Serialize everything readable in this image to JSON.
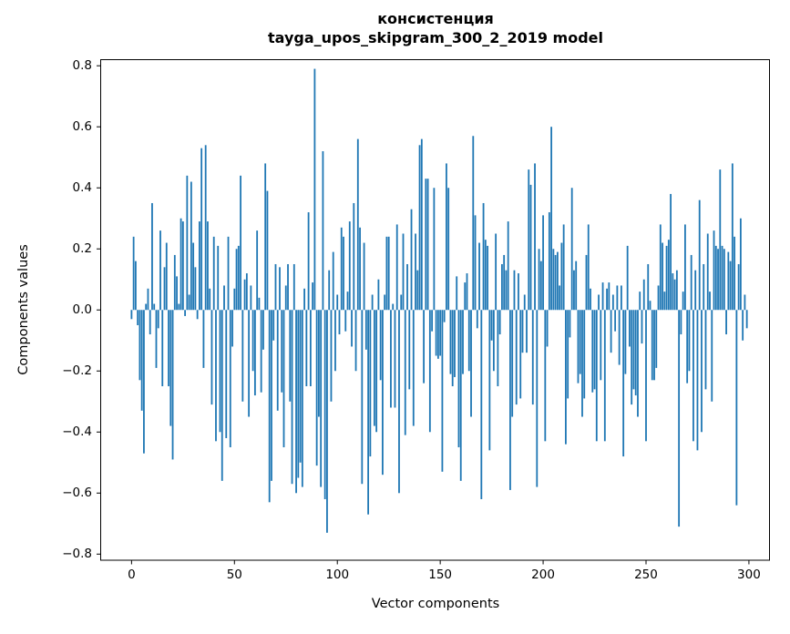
{
  "figure": {
    "title_line1": "консистенция",
    "title_line2": "tayga_upos_skipgram_300_2_2019 model"
  },
  "chart_data": {
    "type": "bar",
    "title": "консистенция — tayga_upos_skipgram_300_2_2019 model",
    "xlabel": "Vector components",
    "ylabel": "Components values",
    "bar_color": "#1f77b4",
    "n_components": 300,
    "xlim": [
      -15,
      310
    ],
    "ylim": [
      -0.82,
      0.82
    ],
    "x_ticks": [
      0,
      50,
      100,
      150,
      200,
      250,
      300
    ],
    "y_ticks": [
      0.8,
      0.6,
      0.4,
      0.2,
      0.0,
      -0.2,
      -0.4,
      -0.6,
      -0.8
    ],
    "y_tick_labels": [
      "0.8",
      "0.6",
      "0.4",
      "0.2",
      "0.0",
      "−0.2",
      "−0.4",
      "−0.6",
      "−0.8"
    ],
    "grid": false,
    "legend": null,
    "values": [
      -0.03,
      0.24,
      0.16,
      -0.05,
      -0.23,
      -0.33,
      -0.47,
      0.02,
      0.07,
      -0.08,
      0.35,
      0.02,
      -0.19,
      -0.06,
      0.26,
      -0.25,
      0.14,
      0.22,
      -0.25,
      -0.38,
      -0.49,
      0.18,
      0.11,
      0.02,
      0.3,
      0.29,
      -0.02,
      0.44,
      0.05,
      0.42,
      0.22,
      0.14,
      -0.03,
      0.29,
      0.53,
      -0.19,
      0.54,
      0.29,
      0.07,
      -0.31,
      0.24,
      -0.43,
      0.21,
      -0.4,
      -0.56,
      0.08,
      -0.42,
      0.24,
      -0.45,
      -0.12,
      0.07,
      0.2,
      0.21,
      0.44,
      -0.3,
      0.1,
      0.12,
      -0.35,
      0.08,
      -0.2,
      -0.28,
      0.26,
      0.04,
      -0.27,
      -0.13,
      0.48,
      0.39,
      -0.63,
      -0.56,
      -0.1,
      0.15,
      -0.33,
      0.14,
      -0.27,
      -0.45,
      0.08,
      0.15,
      -0.3,
      -0.57,
      0.15,
      -0.6,
      -0.55,
      -0.5,
      -0.58,
      0.07,
      -0.25,
      0.32,
      -0.25,
      0.09,
      0.79,
      -0.51,
      -0.35,
      -0.58,
      0.52,
      -0.62,
      -0.73,
      0.13,
      -0.3,
      0.19,
      -0.2,
      0.05,
      -0.08,
      0.27,
      0.24,
      -0.07,
      0.06,
      0.29,
      -0.12,
      0.35,
      -0.2,
      0.56,
      0.27,
      -0.57,
      0.22,
      -0.13,
      -0.67,
      -0.48,
      0.05,
      -0.38,
      -0.4,
      0.1,
      -0.23,
      -0.54,
      0.05,
      0.24,
      0.24,
      -0.32,
      0.02,
      -0.32,
      0.28,
      -0.6,
      0.05,
      0.25,
      -0.41,
      0.15,
      -0.26,
      0.33,
      -0.38,
      0.25,
      0.13,
      0.54,
      0.56,
      -0.24,
      0.43,
      0.43,
      -0.4,
      -0.07,
      0.4,
      -0.15,
      -0.16,
      -0.15,
      -0.53,
      -0.04,
      0.48,
      0.4,
      -0.21,
      -0.25,
      -0.22,
      0.11,
      -0.45,
      -0.56,
      -0.21,
      0.09,
      0.12,
      -0.2,
      -0.35,
      0.57,
      0.31,
      -0.06,
      0.22,
      -0.62,
      0.35,
      0.23,
      0.21,
      -0.46,
      -0.1,
      -0.2,
      0.25,
      -0.25,
      -0.08,
      0.15,
      0.18,
      0.13,
      0.29,
      -0.59,
      -0.35,
      0.13,
      -0.31,
      0.12,
      -0.29,
      -0.14,
      0.05,
      -0.14,
      0.46,
      0.41,
      -0.31,
      0.48,
      -0.58,
      0.2,
      0.16,
      0.31,
      -0.43,
      -0.12,
      0.32,
      0.6,
      0.2,
      0.18,
      0.19,
      0.08,
      0.22,
      0.28,
      -0.44,
      -0.29,
      -0.09,
      0.4,
      0.13,
      0.16,
      -0.24,
      -0.21,
      -0.35,
      -0.29,
      0.18,
      0.28,
      0.07,
      -0.27,
      -0.26,
      -0.43,
      0.05,
      -0.23,
      0.09,
      -0.43,
      0.07,
      0.09,
      -0.14,
      0.05,
      -0.07,
      0.08,
      -0.18,
      0.08,
      -0.48,
      -0.21,
      0.21,
      -0.12,
      -0.31,
      -0.26,
      -0.28,
      -0.35,
      0.06,
      -0.11,
      0.1,
      -0.43,
      0.15,
      0.03,
      -0.23,
      -0.23,
      -0.19,
      0.08,
      0.28,
      0.22,
      0.06,
      0.21,
      0.23,
      0.38,
      0.12,
      0.1,
      0.13,
      -0.71,
      -0.08,
      0.06,
      0.28,
      -0.24,
      -0.2,
      0.18,
      -0.43,
      0.13,
      -0.46,
      0.36,
      -0.4,
      0.15,
      -0.26,
      0.25,
      0.06,
      -0.3,
      0.26,
      0.21,
      0.2,
      0.46,
      0.21,
      0.2,
      -0.08,
      0.19,
      0.16,
      0.48,
      0.24,
      -0.64,
      0.15,
      0.3,
      -0.1,
      0.05,
      -0.06
    ]
  }
}
